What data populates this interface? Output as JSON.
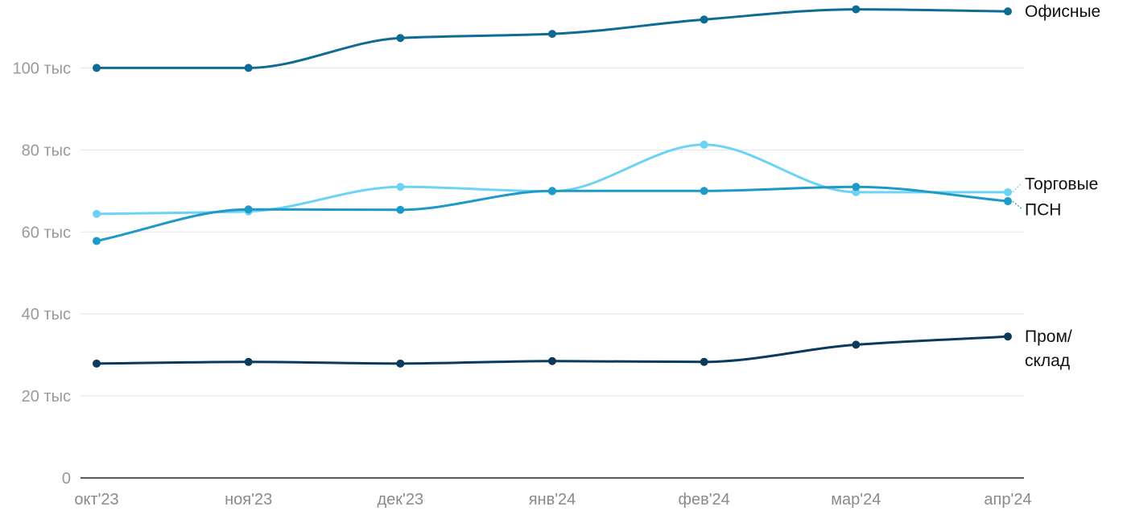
{
  "chart_data": {
    "type": "line",
    "title": "",
    "xlabel": "",
    "ylabel": "",
    "categories": [
      "окт'23",
      "ноя'23",
      "дек'23",
      "янв'24",
      "фев'24",
      "мар'24",
      "апр'24"
    ],
    "ylim": [
      0,
      115000
    ],
    "y_ticks": [
      0,
      20000,
      40000,
      60000,
      80000,
      100000
    ],
    "y_tick_labels": [
      "0",
      "20 тыс",
      "40 тыс",
      "60 тыс",
      "80 тыс",
      "100 тыс"
    ],
    "grid": true,
    "legend": "direct labels at line ends (right)",
    "series": [
      {
        "name": "Офисные",
        "label_lines": [
          "Офисные"
        ],
        "color": "#0e6b93",
        "values": [
          100000,
          100000,
          107300,
          108300,
          111800,
          114300,
          113800
        ]
      },
      {
        "name": "Торговые",
        "label_lines": [
          "Торговые"
        ],
        "color": "#6dd3f5",
        "values": [
          64400,
          65000,
          71000,
          69900,
          81300,
          69700,
          69700
        ]
      },
      {
        "name": "ПСН",
        "label_lines": [
          "ПСН"
        ],
        "color": "#1e9ac8",
        "values": [
          57800,
          65500,
          65400,
          70000,
          70000,
          71000,
          67500
        ]
      },
      {
        "name": "Пром/ склад",
        "label_lines": [
          "Пром/",
          "склад"
        ],
        "color": "#0a3a5c",
        "values": [
          27900,
          28300,
          27900,
          28500,
          28300,
          32500,
          34500
        ]
      }
    ]
  }
}
